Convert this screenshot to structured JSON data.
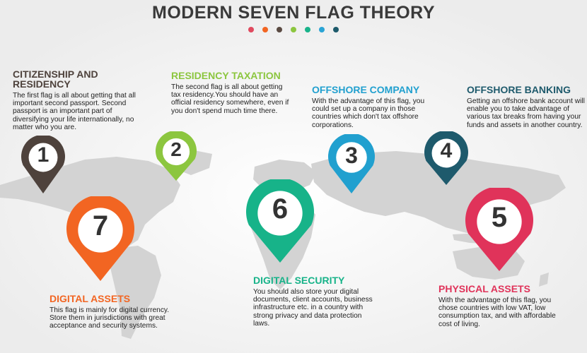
{
  "title": "MODERN SEVEN FLAG THEORY",
  "dot_colors": [
    "#e04a5f",
    "#f26522",
    "#5a4a42",
    "#8cc63f",
    "#19b38a",
    "#2aa4d5",
    "#1d5a6b"
  ],
  "flags": [
    {
      "number": "1",
      "color": "#4e423c",
      "heading": "CITIZENSHIP AND RESIDENCY",
      "text": "The first flag is all about getting that all important second passport. Second passport is an important part of diversifying your life internationally, no matter who you are."
    },
    {
      "number": "2",
      "color": "#8cc63f",
      "heading": "RESIDENCY TAXATION",
      "text": "The second flag is all about getting tax residency.You should have an official residency somewhere, even if you don't spend much time there."
    },
    {
      "number": "3",
      "color": "#21a0cf",
      "heading": "OFFSHORE COMPANY",
      "text": "With the advantage of this flag, you could set up a company in those countries which don't tax offshore corporations."
    },
    {
      "number": "4",
      "color": "#1e5a6c",
      "heading": "OFFSHORE BANKING",
      "text": "Getting an offshore bank account will enable you to take advantage of various tax breaks from having your funds and assets in another country."
    },
    {
      "number": "5",
      "color": "#e0335a",
      "heading": "PHYSICAL ASSETS",
      "text": "With the advantage of this flag, you chose countries with low VAT, low consumption tax, and with affordable cost of living."
    },
    {
      "number": "6",
      "color": "#17b389",
      "heading": "DIGITAL SECURITY",
      "text": "You should also store your digital documents, client accounts, business infrastructure etc. in a country with strong privacy and data protection laws."
    },
    {
      "number": "7",
      "color": "#f26522",
      "heading": "DIGITAL ASSETS",
      "text": "This flag is mainly for digital currency. Store them in jurisdictions with great acceptance and security systems."
    }
  ]
}
